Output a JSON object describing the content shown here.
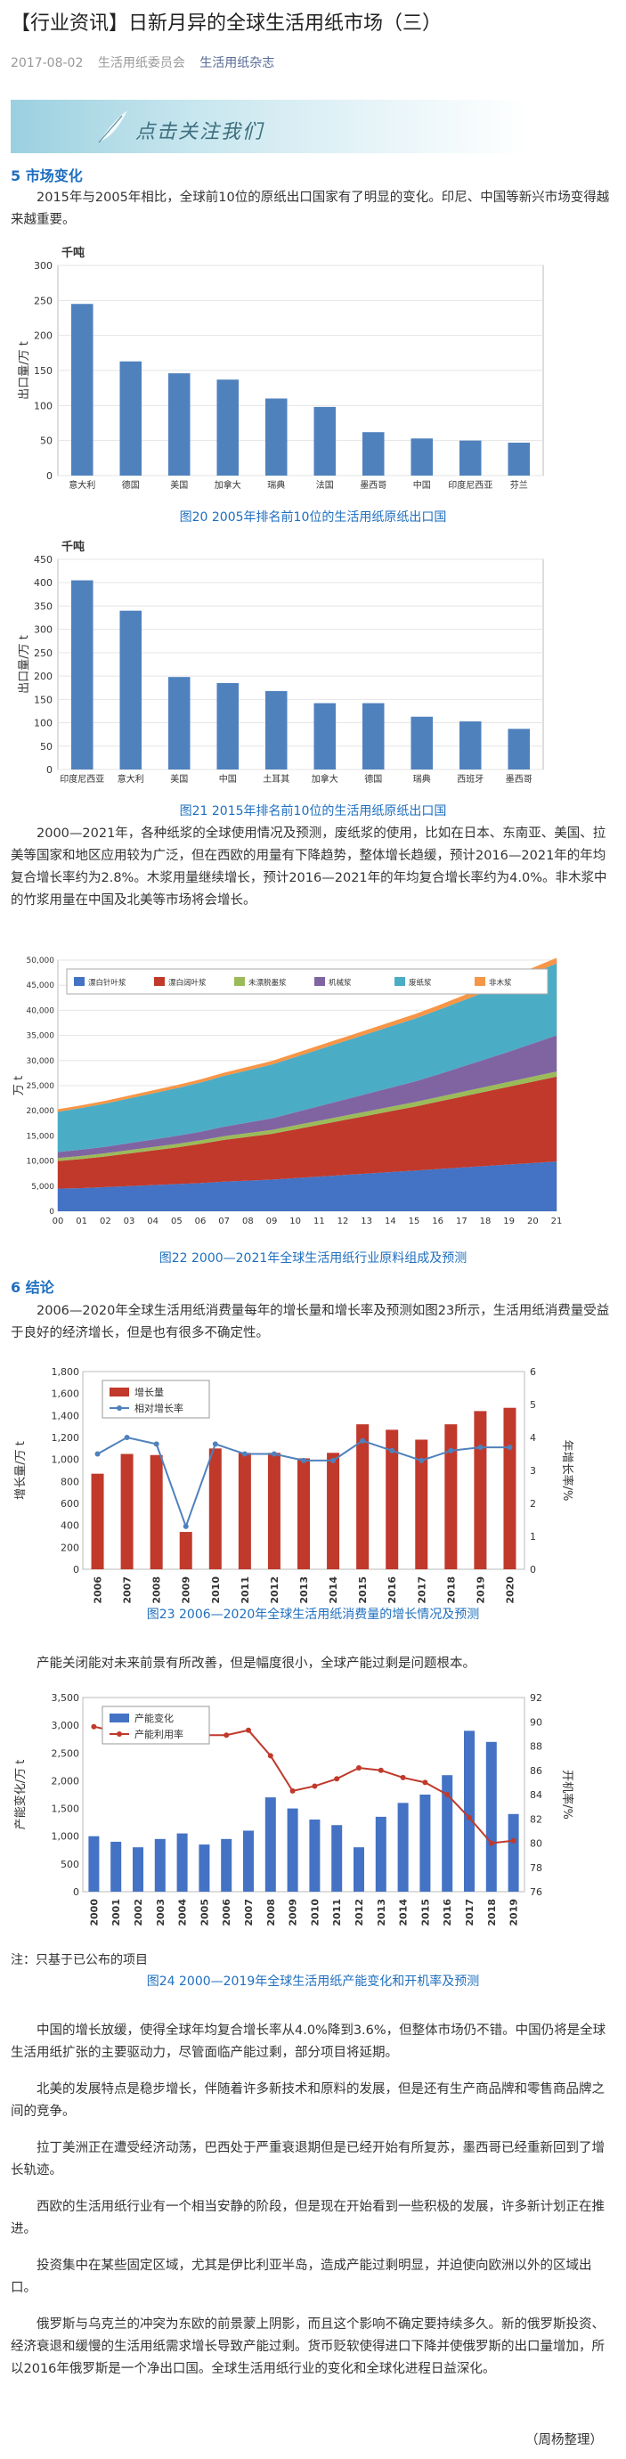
{
  "header": {
    "title": "【行业资讯】日新月异的全球生活用纸市场（三）",
    "date": "2017-08-02",
    "author": "生活用纸委员会",
    "account_link": "生活用纸杂志",
    "banner_text": "点击关注我们"
  },
  "sections": {
    "s5_heading": "5    市场变化",
    "s5_p1": "2015年与2005年相比，全球前10位的原纸出口国家有了明显的变化。印尼、中国等新兴市场变得越来越重要。",
    "s5_p2": "2000—2021年，各种纸浆的全球使用情况及预测，废纸浆的使用，比如在日本、东南亚、美国、拉美等国家和地区应用较为广泛，但在西欧的用量有下降趋势，整体增长趋缓，预计2016—2021年的年均复合增长率约为2.8%。木浆用量继续增长，预计2016—2021年的年均复合增长率约为4.0%。非木浆中的竹浆用量在中国及北美等市场将会增长。",
    "s6_heading": "6    结论",
    "s6_p1": "2006—2020年全球生活用纸消费量每年的增长量和增长率及预测如图23所示，生活用纸消费量受益于良好的经济增长，但是也有很多不确定性。",
    "s6_p2": "产能关闭能对未来前景有所改善，但是幅度很小，全球产能过剩是问题根本。",
    "note": "注：只基于已公布的项目",
    "c1": "中国的增长放缓，使得全球年均复合增长率从4.0%降到3.6%，但整体市场仍不错。中国仍将是全球生活用纸扩张的主要驱动力，尽管面临产能过剩，部分项目将延期。",
    "c2": "北美的发展特点是稳步增长，伴随着许多新技术和原料的发展，但是还有生产商品牌和零售商品牌之间的竞争。",
    "c3": "拉丁美洲正在遭受经济动荡，巴西处于严重衰退期但是已经开始有所复苏，墨西哥已经重新回到了增长轨迹。",
    "c4": "西欧的生活用纸行业有一个相当安静的阶段，但是现在开始看到一些积极的发展，许多新计划正在推进。",
    "c5": "投资集中在某些固定区域，尤其是伊比利亚半岛，造成产能过剩明显，并迫使向欧洲以外的区域出口。",
    "c6": "俄罗斯与乌克兰的冲突为东欧的前景蒙上阴影，而且这个影响不确定要持续多久。新的俄罗斯投资、经济衰退和缓慢的生活用纸需求增长导致产能过剩。货币贬软使得进口下降并使俄罗斯的出口量增加，所以2016年俄罗斯是一个净出口国。全球生活用纸行业的变化和全球化进程日益深化。",
    "signature": "（周杨整理）"
  },
  "captions": {
    "fig20": "图20  2005年排名前10位的生活用纸原纸出口国",
    "fig21": "图21  2015年排名前10位的生活用纸原纸出口国",
    "fig22": "图22  2000—2021年全球生活用纸行业原料组成及预测",
    "fig23": "图23  2006—2020年全球生活用纸消费量的增长情况及预测",
    "fig24": "图24  2000—2019年全球生活用纸产能变化和开机率及预测"
  },
  "chart_data": [
    {
      "type": "bar",
      "unit_label": "千吨",
      "ylabel": "出口量/万 t",
      "ylim": [
        0,
        300
      ],
      "yticks": [
        0,
        50,
        100,
        150,
        200,
        250,
        300
      ],
      "categories": [
        "意大利",
        "德国",
        "美国",
        "加拿大",
        "瑞典",
        "法国",
        "墨西哥",
        "中国",
        "印度尼西亚",
        "芬兰"
      ],
      "values": [
        245,
        163,
        146,
        137,
        110,
        98,
        62,
        53,
        50,
        47
      ],
      "color": "#4f81bd"
    },
    {
      "type": "bar",
      "unit_label": "千吨",
      "ylabel": "出口量/万 t",
      "ylim": [
        0,
        450
      ],
      "yticks": [
        0,
        50,
        100,
        150,
        200,
        250,
        300,
        350,
        400,
        450
      ],
      "categories": [
        "印度尼西亚",
        "意大利",
        "美国",
        "中国",
        "土耳其",
        "加拿大",
        "德国",
        "瑞典",
        "西班牙",
        "墨西哥"
      ],
      "values": [
        405,
        340,
        198,
        185,
        168,
        142,
        142,
        113,
        103,
        87
      ],
      "color": "#4f81bd"
    },
    {
      "type": "area",
      "ylabel": "万 t",
      "ylim": [
        0,
        50000
      ],
      "yticks": [
        0,
        5000,
        10000,
        15000,
        20000,
        25000,
        30000,
        35000,
        40000,
        45000,
        50000
      ],
      "categories": [
        "00",
        "01",
        "02",
        "03",
        "04",
        "05",
        "06",
        "07",
        "08",
        "09",
        "10",
        "11",
        "12",
        "13",
        "14",
        "15",
        "16",
        "17",
        "18",
        "19",
        "20",
        "21"
      ],
      "series": [
        {
          "name": "漂白针叶浆",
          "color": "#4472c4",
          "values": [
            4500,
            4600,
            4800,
            5000,
            5200,
            5400,
            5600,
            5900,
            6100,
            6300,
            6600,
            6900,
            7200,
            7500,
            7800,
            8100,
            8400,
            8700,
            9000,
            9300,
            9600,
            9900
          ]
        },
        {
          "name": "漂白阔叶浆",
          "color": "#c0392b",
          "values": [
            5500,
            5800,
            6100,
            6500,
            6900,
            7300,
            7800,
            8300,
            8700,
            9100,
            9700,
            10300,
            10900,
            11500,
            12100,
            12700,
            13400,
            14100,
            14800,
            15500,
            16200,
            16900
          ]
        },
        {
          "name": "未漂脱墨浆",
          "color": "#9bbb59",
          "values": [
            600,
            620,
            640,
            660,
            680,
            700,
            720,
            740,
            760,
            780,
            800,
            820,
            840,
            860,
            880,
            900,
            920,
            940,
            960,
            980,
            1000,
            1020
          ]
        },
        {
          "name": "机械浆",
          "color": "#8064a2",
          "values": [
            1200,
            1250,
            1300,
            1400,
            1500,
            1600,
            1700,
            1900,
            2100,
            2300,
            2600,
            2900,
            3200,
            3500,
            3800,
            4100,
            4500,
            5000,
            5500,
            6000,
            6600,
            7200
          ]
        },
        {
          "name": "废纸浆",
          "color": "#4bacc6",
          "values": [
            8000,
            8300,
            8600,
            8900,
            9200,
            9500,
            9800,
            10100,
            10400,
            10700,
            11000,
            11300,
            11600,
            11900,
            12200,
            12500,
            12800,
            13100,
            13400,
            13700,
            14000,
            14300
          ]
        },
        {
          "name": "非木浆",
          "color": "#f79646",
          "values": [
            500,
            520,
            540,
            560,
            580,
            600,
            620,
            650,
            680,
            710,
            740,
            770,
            800,
            830,
            860,
            890,
            920,
            960,
            1000,
            1040,
            1080,
            1120
          ]
        }
      ]
    },
    {
      "type": "bar",
      "ylabel": "增长量/万 t",
      "y2label": "年增长率/%",
      "ylim": [
        0,
        1800
      ],
      "yticks": [
        0,
        200,
        400,
        600,
        800,
        1000,
        1200,
        1400,
        1600,
        1800
      ],
      "y2lim": [
        0,
        6
      ],
      "y2ticks": [
        0,
        1,
        2,
        3,
        4,
        5,
        6
      ],
      "categories": [
        "2006",
        "2007",
        "2008",
        "2009",
        "2010",
        "2011",
        "2012",
        "2013",
        "2014",
        "2015",
        "2016",
        "2017",
        "2018",
        "2019",
        "2020"
      ],
      "series": [
        {
          "name": "增长量",
          "type": "bar",
          "color": "#c0392b",
          "values": [
            870,
            1050,
            1040,
            340,
            1100,
            1060,
            1060,
            1010,
            1060,
            1320,
            1270,
            1180,
            1320,
            1440,
            1470
          ]
        },
        {
          "name": "相对增长率",
          "type": "line",
          "axis": "right",
          "color": "#4f81bd",
          "values": [
            3.5,
            4.0,
            3.8,
            1.3,
            3.8,
            3.5,
            3.5,
            3.3,
            3.3,
            3.9,
            3.6,
            3.3,
            3.6,
            3.7,
            3.7
          ]
        }
      ]
    },
    {
      "type": "bar",
      "ylabel": "产能变化/万 t",
      "y2label": "开机率/%",
      "ylim": [
        0,
        3500
      ],
      "yticks": [
        0,
        500,
        1000,
        1500,
        2000,
        2500,
        3000,
        3500
      ],
      "y2lim": [
        76,
        92
      ],
      "y2ticks": [
        76,
        78,
        80,
        82,
        84,
        86,
        88,
        90,
        92
      ],
      "categories": [
        "2000",
        "2001",
        "2002",
        "2003",
        "2004",
        "2005",
        "2006",
        "2007",
        "2008",
        "2009",
        "2010",
        "2011",
        "2012",
        "2013",
        "2014",
        "2015",
        "2016",
        "2017",
        "2018",
        "2019"
      ],
      "series": [
        {
          "name": "产能变化",
          "type": "bar",
          "color": "#4472c4",
          "values": [
            1000,
            900,
            800,
            950,
            1050,
            850,
            950,
            1100,
            1700,
            1500,
            1300,
            1200,
            800,
            1350,
            1600,
            1750,
            2100,
            2900,
            2700,
            1400
          ]
        },
        {
          "name": "产能利用率",
          "type": "line",
          "axis": "right",
          "color": "#c0392b",
          "values": [
            89.6,
            89.2,
            89.8,
            88.9,
            89.0,
            88.9,
            88.9,
            89.3,
            87.2,
            84.3,
            84.7,
            85.3,
            86.2,
            86.0,
            85.4,
            85.0,
            84.0,
            82.1,
            80.0,
            80.2
          ]
        }
      ]
    }
  ]
}
